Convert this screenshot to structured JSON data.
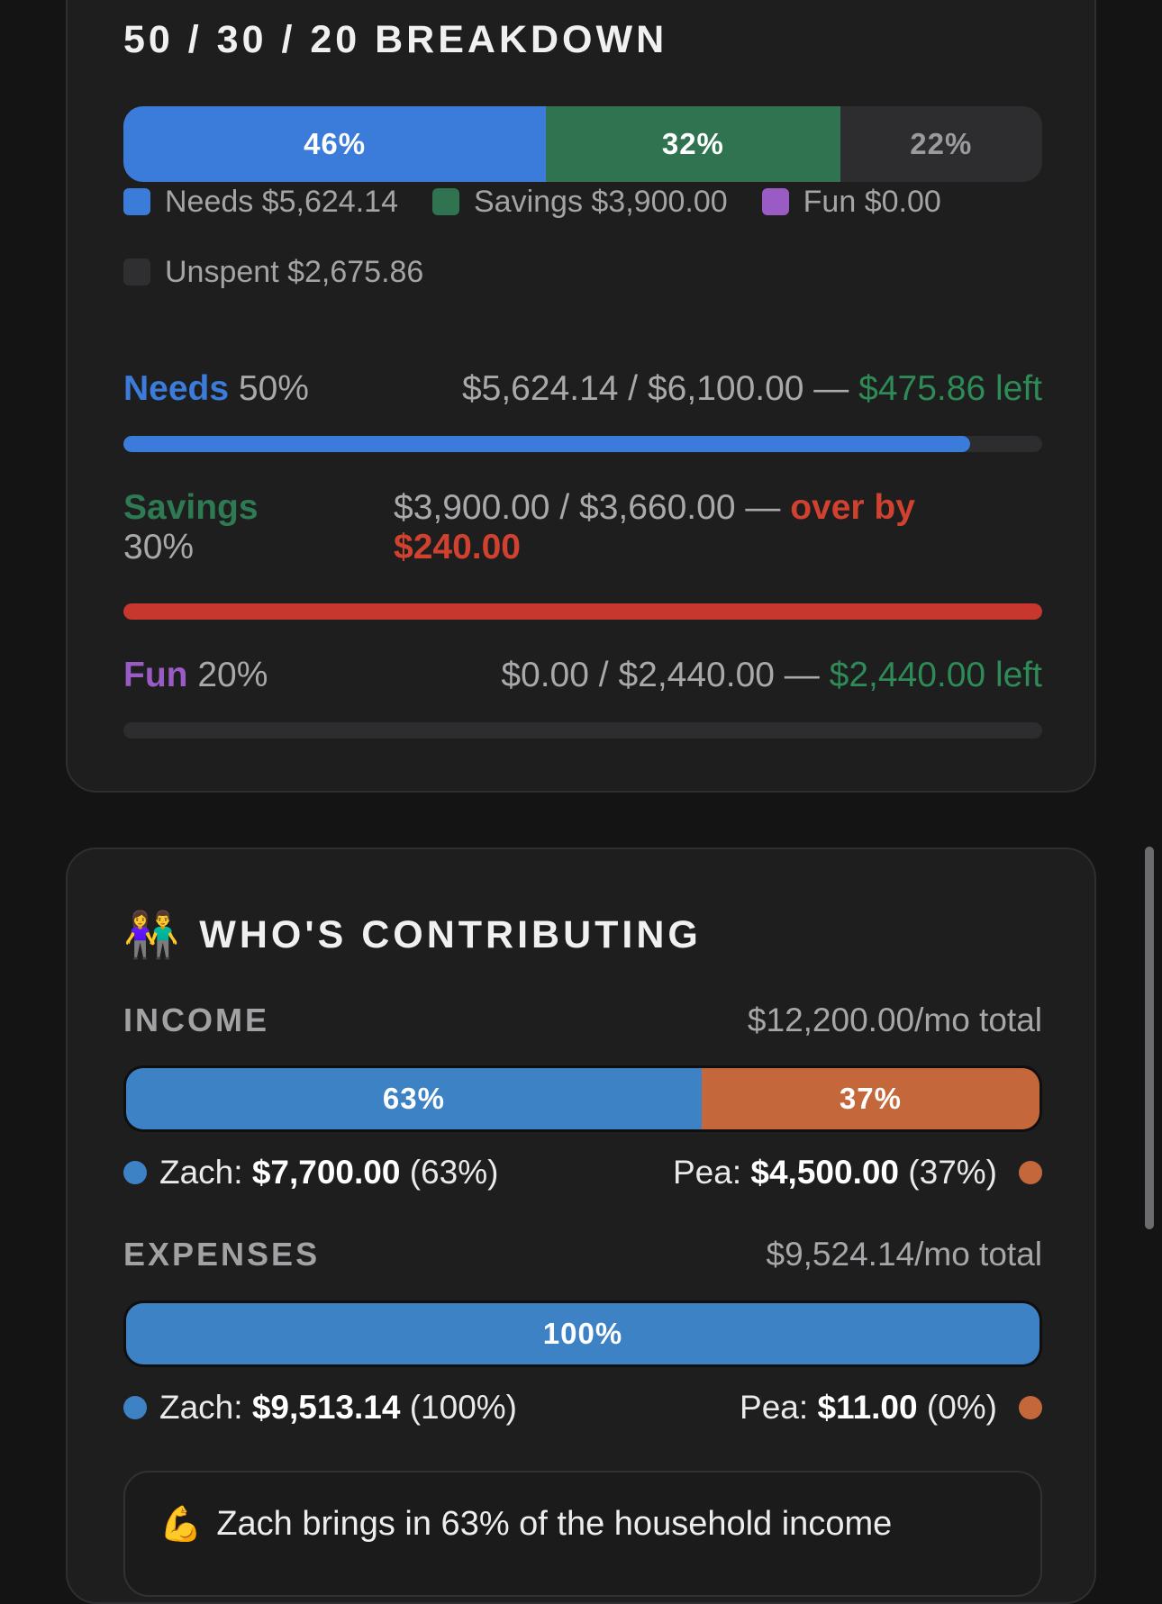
{
  "breakdown": {
    "title": "50 / 30 / 20 BREAKDOWN",
    "stack": [
      {
        "label": "46%",
        "pct": 46,
        "color": "#3b7bd9"
      },
      {
        "label": "32%",
        "pct": 32,
        "color": "#2f7350"
      },
      {
        "label": "22%",
        "pct": 22,
        "color": "#2d2d2f"
      }
    ],
    "legend": [
      {
        "label": "Needs $5,624.14",
        "color": "#3b7bd9"
      },
      {
        "label": "Savings $3,900.00",
        "color": "#2f7350"
      },
      {
        "label": "Fun $0.00",
        "color": "#9a5cc4"
      },
      {
        "label": "Unspent $2,675.86",
        "color": "#2f2f31"
      }
    ],
    "needs": {
      "name": "Needs",
      "pct": "50%",
      "amount": "$5,624.14 / $6,100.00 —",
      "status": "$475.86 left",
      "progress": 0.922,
      "color": "#3b7bd9",
      "status_color": "#2e8a57"
    },
    "savings": {
      "name": "Savings",
      "pct": "30%",
      "amount": "$3,900.00 / $3,660.00 —",
      "status_a": "over by",
      "status_b": "$240.00",
      "progress": 1.0,
      "color": "#c8372d",
      "name_color": "#2e7a52"
    },
    "fun": {
      "name": "Fun",
      "pct": "20%",
      "amount": "$0.00 / $2,440.00 —",
      "status": "$2,440.00 left",
      "progress": 0.0,
      "color": "#9a5cc4",
      "status_color": "#2e8a57"
    }
  },
  "contributing": {
    "emoji": "👫",
    "title": "WHO'S CONTRIBUTING",
    "income": {
      "label": "INCOME",
      "total": "$12,200.00/mo total",
      "bar": [
        {
          "label": "63%",
          "pct": 63,
          "color": "#3e82c6"
        },
        {
          "label": "37%",
          "pct": 37,
          "color": "#c4673a"
        }
      ],
      "zach": {
        "name": "Zach:",
        "amount": "$7,700.00",
        "pct": "(63%)"
      },
      "pea": {
        "name": "Pea:",
        "amount": "$4,500.00",
        "pct": "(37%)"
      }
    },
    "expenses": {
      "label": "EXPENSES",
      "total": "$9,524.14/mo total",
      "bar": [
        {
          "label": "100%",
          "pct": 100,
          "color": "#3e82c6"
        }
      ],
      "zach": {
        "name": "Zach:",
        "amount": "$9,513.14",
        "pct": "(100%)"
      },
      "pea": {
        "name": "Pea:",
        "amount": "$11.00",
        "pct": "(0%)"
      }
    },
    "insight": {
      "emoji": "💪",
      "text": "Zach brings in 63% of the household income"
    },
    "zach_color": "#3e82c6",
    "pea_color": "#c4673a"
  }
}
